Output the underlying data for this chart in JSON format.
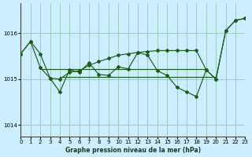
{
  "title": "Graphe pression niveau de la mer (hPa)",
  "bg_color": "#cceeff",
  "grid_color": "#99ccbb",
  "line_color": "#1a5c1a",
  "xlim": [
    0,
    23
  ],
  "ylim": [
    1013.75,
    1016.65
  ],
  "yticks": [
    1014,
    1015,
    1016
  ],
  "xticks": [
    0,
    1,
    2,
    3,
    4,
    5,
    6,
    7,
    8,
    9,
    10,
    11,
    12,
    13,
    14,
    15,
    16,
    17,
    18,
    19,
    20,
    21,
    22,
    23
  ],
  "series_volatile": {
    "x": [
      0,
      1,
      2,
      3,
      4,
      5,
      6,
      7,
      8,
      9,
      10,
      11,
      12,
      13,
      14,
      15,
      16,
      17,
      18,
      19,
      20,
      21,
      22,
      23
    ],
    "y": [
      1015.55,
      1015.82,
      1015.55,
      1015.02,
      1014.72,
      1015.2,
      1015.15,
      1015.35,
      1015.1,
      1015.08,
      1015.27,
      1015.22,
      1015.58,
      1015.52,
      1015.18,
      1015.08,
      1014.82,
      1014.72,
      1014.62,
      1015.2,
      1015.0,
      1016.05,
      1016.28,
      1016.32
    ]
  },
  "series_ascending": {
    "x": [
      0,
      1,
      2,
      3,
      4,
      5,
      6,
      7,
      8,
      9,
      10,
      11,
      12,
      13,
      14,
      15,
      16,
      17,
      18,
      19,
      20,
      21,
      22,
      23
    ],
    "y": [
      1015.55,
      1015.82,
      1015.25,
      1015.02,
      1015.0,
      1015.15,
      1015.18,
      1015.3,
      1015.38,
      1015.45,
      1015.52,
      1015.55,
      1015.58,
      1015.6,
      1015.62,
      1015.62,
      1015.62,
      1015.62,
      1015.62,
      1015.2,
      1015.0,
      1016.05,
      1016.28,
      1016.32
    ]
  },
  "flat_high": {
    "x": [
      2,
      19
    ],
    "y": [
      1015.22,
      1015.22
    ]
  },
  "flat_low": {
    "x": [
      4,
      20
    ],
    "y": [
      1015.05,
      1015.05
    ]
  }
}
